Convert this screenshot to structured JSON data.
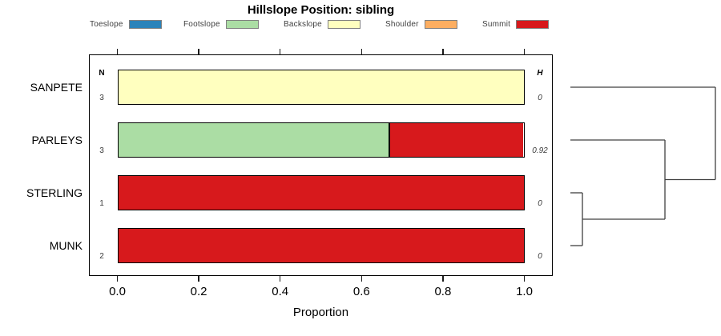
{
  "title": "Hillslope Position: sibling",
  "legend": {
    "items": [
      {
        "label": "Toeslope",
        "color": "#2B83BA"
      },
      {
        "label": "Footslope",
        "color": "#ABDDA4"
      },
      {
        "label": "Backslope",
        "color": "#FFFFBF"
      },
      {
        "label": "Shoulder",
        "color": "#FDAE61"
      },
      {
        "label": "Summit",
        "color": "#D7191C"
      }
    ]
  },
  "axis": {
    "xlabel": "Proportion",
    "tick_labels": [
      "0.0",
      "0.2",
      "0.4",
      "0.6",
      "0.8",
      "1.0"
    ],
    "tick_values": [
      0,
      0.2,
      0.4,
      0.6,
      0.8,
      1.0
    ]
  },
  "columns": {
    "n_header": "N",
    "h_header": "H"
  },
  "chart_data": {
    "type": "bar",
    "orientation": "horizontal-stacked",
    "title": "Hillslope Position: sibling",
    "xlabel": "Proportion",
    "xlim": [
      0,
      1
    ],
    "grid": false,
    "legend_position": "top",
    "categories": [
      "SANPETE",
      "PARLEYS",
      "STERLING",
      "MUNK"
    ],
    "series": [
      {
        "name": "Toeslope",
        "color": "#2B83BA",
        "values": [
          0,
          0,
          0,
          0
        ]
      },
      {
        "name": "Footslope",
        "color": "#ABDDA4",
        "values": [
          0,
          0.667,
          0,
          0
        ]
      },
      {
        "name": "Backslope",
        "color": "#FFFFBF",
        "values": [
          1,
          0,
          0,
          0
        ]
      },
      {
        "name": "Shoulder",
        "color": "#FDAE61",
        "values": [
          0,
          0,
          0,
          0
        ]
      },
      {
        "name": "Summit",
        "color": "#D7191C",
        "values": [
          0,
          0.333,
          1,
          1
        ]
      }
    ],
    "n_values": [
      "3",
      "3",
      "1",
      "2"
    ],
    "h_values": [
      "0",
      "0.92",
      "0",
      "0"
    ],
    "dendrogram": {
      "leaves": [
        "SANPETE",
        "PARLEYS",
        "STERLING",
        "MUNK"
      ],
      "merges": [
        {
          "id": "m0",
          "children": [
            "STERLING",
            "MUNK"
          ],
          "height": 0.083
        },
        {
          "id": "m1",
          "children": [
            "m0",
            "PARLEYS"
          ],
          "height": 0.652
        },
        {
          "id": "m2",
          "children": [
            "m1",
            "SANPETE"
          ],
          "height": 1.0
        }
      ]
    }
  }
}
